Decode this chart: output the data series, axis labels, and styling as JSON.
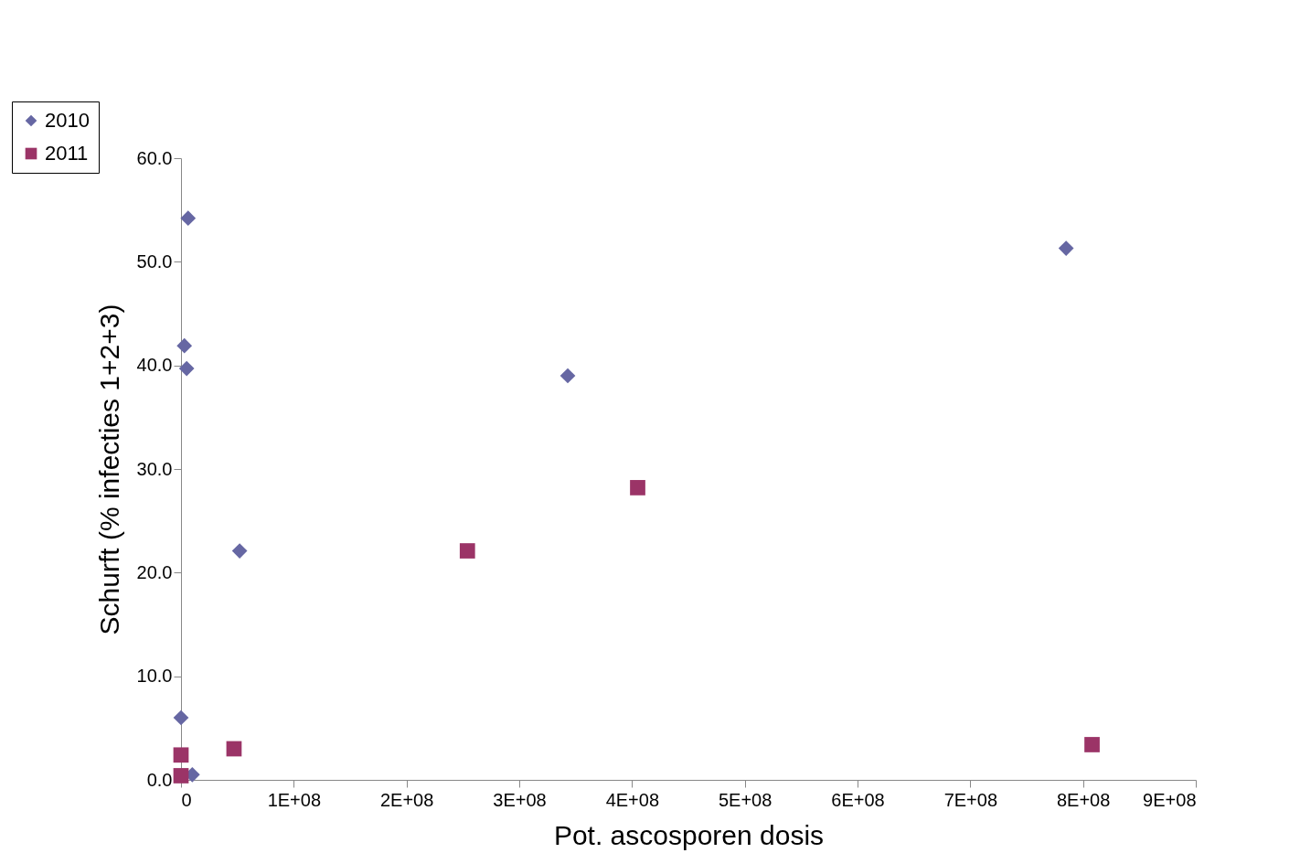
{
  "chart_data": {
    "type": "scatter",
    "xlabel": "Pot. ascosporen dosis",
    "ylabel": "Schurft (% infecties 1+2+3)",
    "xlim": [
      0,
      900000000
    ],
    "ylim": [
      0,
      60
    ],
    "xticks": [
      0,
      {
        "value": 100000000,
        "label": "1E+08"
      },
      {
        "value": 200000000,
        "label": "2E+08"
      },
      {
        "value": 300000000,
        "label": "3E+08"
      },
      {
        "value": 400000000,
        "label": "4E+08"
      },
      {
        "value": 500000000,
        "label": "5E+08"
      },
      {
        "value": 600000000,
        "label": "6E+08"
      },
      {
        "value": 700000000,
        "label": "7E+08"
      },
      {
        "value": 800000000,
        "label": "8E+08"
      },
      {
        "value": 900000000,
        "label": "9E+08"
      }
    ],
    "yticks": [
      {
        "value": 0,
        "label": "0.0"
      },
      {
        "value": 10,
        "label": "10.0"
      },
      {
        "value": 20,
        "label": "20.0"
      },
      {
        "value": 30,
        "label": "30.0"
      },
      {
        "value": 40,
        "label": "40.0"
      },
      {
        "value": 50,
        "label": "50.0"
      },
      {
        "value": 60,
        "label": "60.0"
      }
    ],
    "grid": false,
    "legend": "top left",
    "series": [
      {
        "name": "2010",
        "color": "#6667a3",
        "marker": "diamond",
        "x": [
          6300000,
          3000000,
          5000000,
          52000000,
          343000000,
          785000000,
          0,
          10000000
        ],
        "values": [
          54.2,
          41.9,
          39.7,
          22.1,
          39.0,
          51.3,
          6.0,
          0.5
        ]
      },
      {
        "name": "2011",
        "color": "#9b3467",
        "marker": "square",
        "x": [
          254000000,
          405000000,
          47000000,
          808000000,
          0,
          0
        ],
        "values": [
          22.1,
          28.2,
          3.0,
          3.4,
          2.4,
          0.4
        ]
      }
    ]
  }
}
